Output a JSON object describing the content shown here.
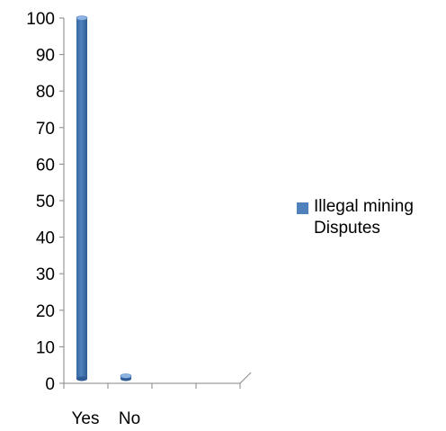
{
  "chart_data": {
    "type": "bar",
    "categories": [
      "Yes",
      "No"
    ],
    "series": [
      {
        "name": "Illegal mining Disputes",
        "values": [
          100,
          2
        ],
        "color": "#4F81BD"
      }
    ],
    "ylim": [
      0,
      100
    ],
    "yticks": [
      0,
      10,
      20,
      30,
      40,
      50,
      60,
      70,
      80,
      90,
      100
    ],
    "grid": false,
    "legend_position": "right",
    "bar_style": "3d-cylinder"
  }
}
